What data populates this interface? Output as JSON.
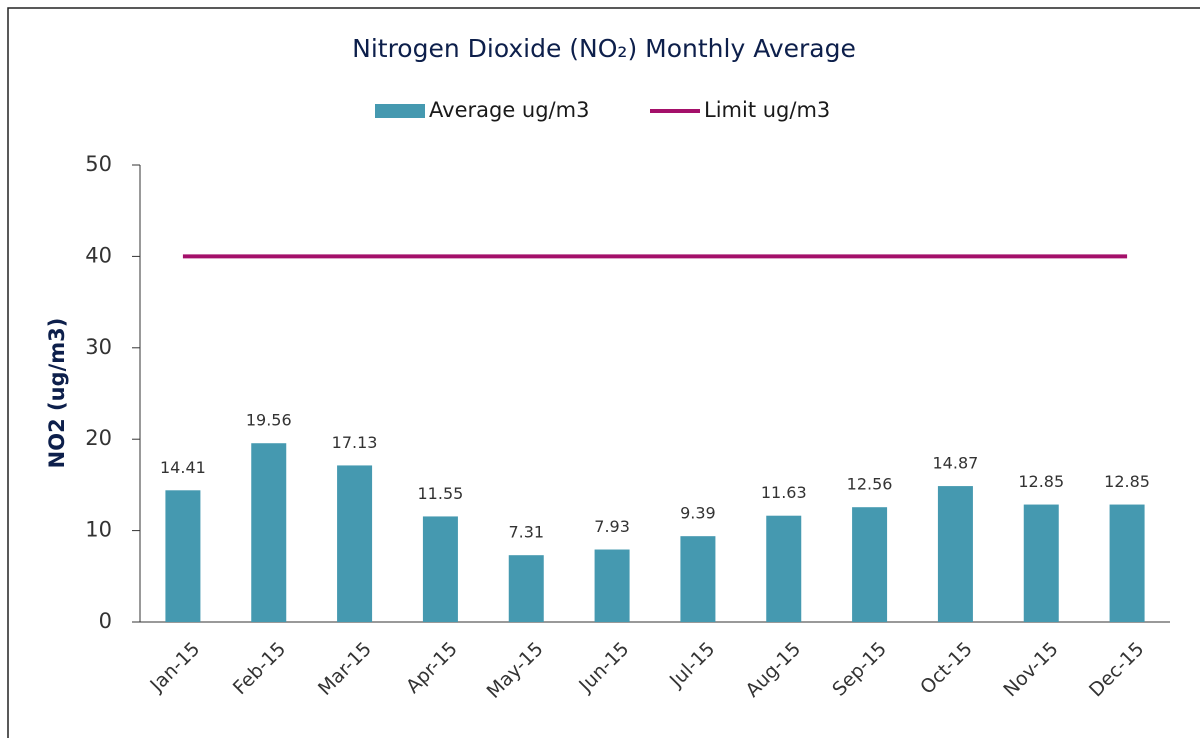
{
  "chart_data": {
    "type": "bar",
    "title": "Nitrogen Dioxide (NO₂) Monthly Average",
    "y_label": "NO2 (ug/m3)",
    "categories": [
      "Jan-15",
      "Feb-15",
      "Mar-15",
      "Apr-15",
      "May-15",
      "Jun-15",
      "Jul-15",
      "Aug-15",
      "Sep-15",
      "Oct-15",
      "Nov-15",
      "Dec-15"
    ],
    "series": [
      {
        "name": "Average ug/m3",
        "type": "bar",
        "color": "#4599b0",
        "values": [
          14.41,
          19.56,
          17.13,
          11.55,
          7.31,
          7.93,
          9.39,
          11.63,
          12.56,
          14.87,
          12.85,
          12.85
        ],
        "data_labels": true
      },
      {
        "name": "Limit ug/m3",
        "type": "line",
        "color": "#a4106a",
        "values": [
          40,
          40,
          40,
          40,
          40,
          40,
          40,
          40,
          40,
          40,
          40,
          40
        ]
      }
    ],
    "ylim": [
      0,
      50
    ],
    "yticks": [
      0,
      10,
      20,
      30,
      40,
      50
    ],
    "grid": false
  }
}
